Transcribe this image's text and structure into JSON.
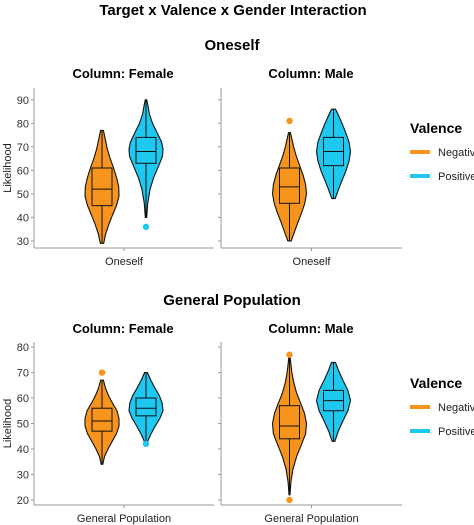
{
  "figure_title": "Target x Valence x Gender Interaction",
  "legend": {
    "title": "Valence",
    "items": [
      {
        "label": "Negative",
        "color": "#f7941d"
      },
      {
        "label": "Positive",
        "color": "#1ec8f0"
      }
    ]
  },
  "chart_data": [
    {
      "type": "violin",
      "panel_title": "Oneself",
      "facet": "Column: Female",
      "xlabel": "Oneself",
      "ylabel": "Likelihood",
      "ylim": [
        27,
        95
      ],
      "yticks": [
        30,
        40,
        50,
        60,
        70,
        80,
        90
      ],
      "series": [
        {
          "name": "Negative",
          "min": 29,
          "max": 77,
          "q1": 45,
          "median": 52,
          "q3": 61,
          "whisker_low": 29,
          "whisker_high": 77,
          "outliers": [],
          "density": [
            [
              29,
              0.1
            ],
            [
              33,
              0.22
            ],
            [
              37,
              0.4
            ],
            [
              41,
              0.62
            ],
            [
              45,
              0.85
            ],
            [
              49,
              1.0
            ],
            [
              53,
              0.98
            ],
            [
              57,
              0.85
            ],
            [
              61,
              0.68
            ],
            [
              65,
              0.48
            ],
            [
              69,
              0.32
            ],
            [
              73,
              0.2
            ],
            [
              77,
              0.08
            ]
          ]
        },
        {
          "name": "Positive",
          "min": 40,
          "max": 90,
          "q1": 63,
          "median": 68,
          "q3": 74,
          "whisker_low": 40,
          "whisker_high": 90,
          "outliers": [
            36
          ],
          "density": [
            [
              40,
              0.04
            ],
            [
              46,
              0.1
            ],
            [
              52,
              0.24
            ],
            [
              57,
              0.45
            ],
            [
              62,
              0.75
            ],
            [
              66,
              0.97
            ],
            [
              69,
              1.0
            ],
            [
              72,
              0.92
            ],
            [
              76,
              0.65
            ],
            [
              80,
              0.38
            ],
            [
              84,
              0.2
            ],
            [
              88,
              0.1
            ],
            [
              90,
              0.04
            ]
          ]
        }
      ]
    },
    {
      "type": "violin",
      "panel_title": "Oneself",
      "facet": "Column: Male",
      "xlabel": "Oneself",
      "ylabel": "Likelihood",
      "ylim": [
        27,
        95
      ],
      "yticks": [
        30,
        40,
        50,
        60,
        70,
        80,
        90
      ],
      "series": [
        {
          "name": "Negative",
          "min": 30,
          "max": 76,
          "q1": 46,
          "median": 53,
          "q3": 61,
          "whisker_low": 30,
          "whisker_high": 76,
          "outliers": [
            81
          ],
          "density": [
            [
              30,
              0.1
            ],
            [
              34,
              0.3
            ],
            [
              38,
              0.5
            ],
            [
              42,
              0.72
            ],
            [
              46,
              0.9
            ],
            [
              50,
              1.0
            ],
            [
              54,
              0.95
            ],
            [
              58,
              0.8
            ],
            [
              62,
              0.6
            ],
            [
              66,
              0.4
            ],
            [
              70,
              0.24
            ],
            [
              74,
              0.12
            ],
            [
              76,
              0.06
            ]
          ]
        },
        {
          "name": "Positive",
          "min": 48,
          "max": 86,
          "q1": 62,
          "median": 68,
          "q3": 74,
          "whisker_low": 48,
          "whisker_high": 86,
          "outliers": [],
          "density": [
            [
              48,
              0.1
            ],
            [
              52,
              0.3
            ],
            [
              56,
              0.52
            ],
            [
              60,
              0.74
            ],
            [
              64,
              0.92
            ],
            [
              68,
              1.0
            ],
            [
              72,
              0.92
            ],
            [
              76,
              0.72
            ],
            [
              80,
              0.5
            ],
            [
              84,
              0.25
            ],
            [
              86,
              0.12
            ]
          ]
        }
      ]
    },
    {
      "type": "violin",
      "panel_title": "General Population",
      "facet": "Column: Female",
      "xlabel": "General Population",
      "ylabel": "Likelihood",
      "ylim": [
        18,
        82
      ],
      "yticks": [
        20,
        30,
        40,
        50,
        60,
        70,
        80
      ],
      "series": [
        {
          "name": "Negative",
          "min": 34,
          "max": 67,
          "q1": 47,
          "median": 51,
          "q3": 56,
          "whisker_low": 34,
          "whisker_high": 67,
          "outliers": [
            70
          ],
          "density": [
            [
              34,
              0.05
            ],
            [
              37,
              0.15
            ],
            [
              40,
              0.35
            ],
            [
              43,
              0.6
            ],
            [
              46,
              0.85
            ],
            [
              49,
              1.0
            ],
            [
              52,
              1.0
            ],
            [
              55,
              0.88
            ],
            [
              58,
              0.62
            ],
            [
              61,
              0.38
            ],
            [
              64,
              0.2
            ],
            [
              67,
              0.08
            ]
          ]
        },
        {
          "name": "Positive",
          "min": 43,
          "max": 70,
          "q1": 53,
          "median": 56,
          "q3": 60,
          "whisker_low": 43,
          "whisker_high": 70,
          "outliers": [
            42
          ],
          "density": [
            [
              43,
              0.1
            ],
            [
              46,
              0.3
            ],
            [
              49,
              0.55
            ],
            [
              52,
              0.82
            ],
            [
              55,
              1.0
            ],
            [
              58,
              0.95
            ],
            [
              61,
              0.78
            ],
            [
              64,
              0.52
            ],
            [
              67,
              0.28
            ],
            [
              70,
              0.08
            ]
          ]
        }
      ]
    },
    {
      "type": "violin",
      "panel_title": "General Population",
      "facet": "Column: Male",
      "xlabel": "General Population",
      "ylabel": "Likelihood",
      "ylim": [
        18,
        82
      ],
      "yticks": [
        20,
        30,
        40,
        50,
        60,
        70,
        80
      ],
      "series": [
        {
          "name": "Negative",
          "min": 22,
          "max": 76,
          "q1": 44,
          "median": 49,
          "q3": 57,
          "whisker_low": 22,
          "whisker_high": 76,
          "outliers": [
            20,
            77
          ],
          "density": [
            [
              22,
              0.03
            ],
            [
              27,
              0.08
            ],
            [
              32,
              0.2
            ],
            [
              37,
              0.42
            ],
            [
              42,
              0.72
            ],
            [
              46,
              0.95
            ],
            [
              50,
              1.0
            ],
            [
              54,
              0.88
            ],
            [
              58,
              0.65
            ],
            [
              62,
              0.42
            ],
            [
              66,
              0.25
            ],
            [
              70,
              0.14
            ],
            [
              74,
              0.07
            ],
            [
              76,
              0.04
            ]
          ]
        },
        {
          "name": "Positive",
          "min": 43,
          "max": 74,
          "q1": 55,
          "median": 59,
          "q3": 63,
          "whisker_low": 43,
          "whisker_high": 74,
          "outliers": [],
          "density": [
            [
              43,
              0.08
            ],
            [
              47,
              0.28
            ],
            [
              51,
              0.55
            ],
            [
              55,
              0.85
            ],
            [
              59,
              1.0
            ],
            [
              63,
              0.85
            ],
            [
              67,
              0.55
            ],
            [
              71,
              0.28
            ],
            [
              74,
              0.12
            ]
          ]
        }
      ]
    }
  ]
}
